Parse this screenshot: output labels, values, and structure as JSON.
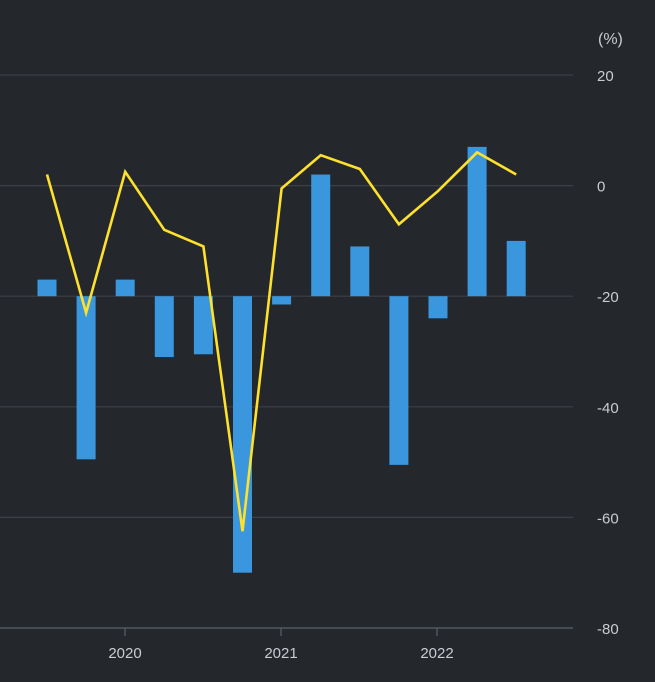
{
  "chart_data": {
    "type": "bar",
    "unit_label": "(%)",
    "ylim": [
      -80,
      20
    ],
    "yticks": [
      20,
      0,
      -20,
      -40,
      -60,
      -80
    ],
    "bar_baseline": -20,
    "x_tick_labels": [
      "2020",
      "2021",
      "2022"
    ],
    "grid": true,
    "series": [
      {
        "kind": "bar",
        "color": "#3a97de",
        "values": [
          -17,
          -49.5,
          -17,
          -31,
          -30.5,
          -70,
          -21.5,
          2,
          -11,
          -50.5,
          -24,
          7,
          -10
        ]
      },
      {
        "kind": "line",
        "color": "#fde12d",
        "values": [
          2,
          -23,
          2.5,
          -8,
          -11,
          -62.5,
          -0.5,
          5.5,
          3,
          -7,
          -1,
          6,
          2
        ]
      }
    ]
  }
}
